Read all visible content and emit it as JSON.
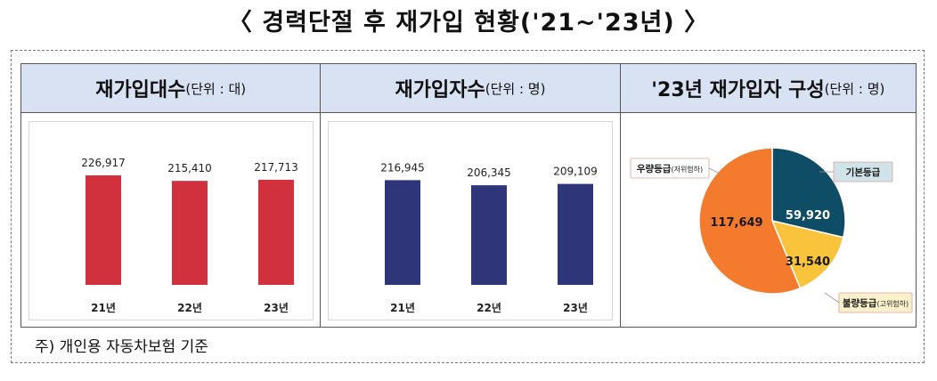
{
  "title": "〈 경력단절 후 재가입 현황('21~'23년) 〉",
  "footnote": "주) 개인용 자동차보험 기준",
  "panels": [
    {
      "title_main": "재가입대수",
      "title_unit": "(단위 : 대)"
    },
    {
      "title_main": "재가입자수",
      "title_unit": "(단위 : 명)"
    },
    {
      "title_main": "'23년 재가입자 구성",
      "title_unit": "(단위 : 명)"
    }
  ],
  "colors": {
    "red_bar": "#d0313c",
    "navy_bar": "#2e3679",
    "pie_basic": "#0f4c66",
    "pie_good": "#f47a2e",
    "pie_bad": "#f9c33c",
    "header_bg": "#d9e2f3"
  },
  "chart_data": [
    {
      "type": "bar",
      "categories": [
        "21년",
        "22년",
        "23년"
      ],
      "values": [
        226917,
        215410,
        217713
      ],
      "value_labels": [
        "226,917",
        "215,410",
        "217,713"
      ],
      "unit": "대",
      "ylim": [
        0,
        300000
      ],
      "grid": false
    },
    {
      "type": "bar",
      "categories": [
        "21년",
        "22년",
        "23년"
      ],
      "values": [
        216945,
        206345,
        209109
      ],
      "value_labels": [
        "216,945",
        "206,345",
        "209,109"
      ],
      "unit": "명",
      "ylim": [
        0,
        300000
      ],
      "grid": false
    },
    {
      "type": "pie",
      "unit": "명",
      "slices": [
        {
          "label": "기본등급",
          "sub": "",
          "value": 59920,
          "value_label": "59,920",
          "color": "#0f4c66",
          "text_color": "#ffffff"
        },
        {
          "label": "불량등급",
          "sub": "(고위험하)",
          "value": 31540,
          "value_label": "31,540",
          "color": "#f9c33c",
          "text_color": "#1a1a1a"
        },
        {
          "label": "우량등급",
          "sub": "(저위험하)",
          "value": 117649,
          "value_label": "117,649",
          "color": "#f47a2e",
          "text_color": "#1a1a1a"
        }
      ]
    }
  ]
}
